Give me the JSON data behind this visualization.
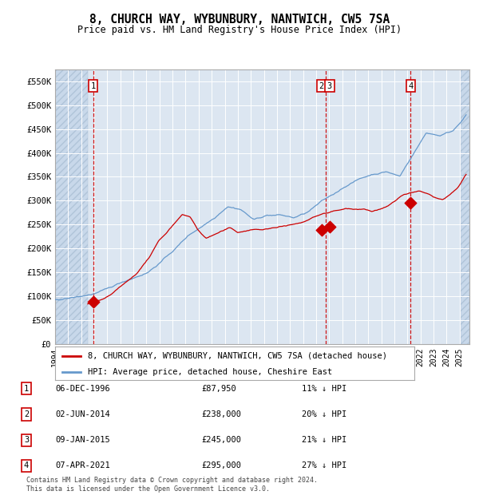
{
  "title": "8, CHURCH WAY, WYBUNBURY, NANTWICH, CW5 7SA",
  "subtitle": "Price paid vs. HM Land Registry's House Price Index (HPI)",
  "ylabel_ticks": [
    "£0",
    "£50K",
    "£100K",
    "£150K",
    "£200K",
    "£250K",
    "£300K",
    "£350K",
    "£400K",
    "£450K",
    "£500K",
    "£550K"
  ],
  "ytick_values": [
    0,
    50000,
    100000,
    150000,
    200000,
    250000,
    300000,
    350000,
    400000,
    450000,
    500000,
    550000
  ],
  "ylim": [
    0,
    575000
  ],
  "xlim_start": 1994.0,
  "xlim_end": 2025.75,
  "hpi_color": "#6699cc",
  "price_color": "#cc0000",
  "background_color": "#dce6f1",
  "grid_color": "#ffffff",
  "sale_points": [
    {
      "date_num": 1996.917,
      "price": 87950,
      "label": "1"
    },
    {
      "date_num": 2014.417,
      "price": 238000,
      "label": "2"
    },
    {
      "date_num": 2015.033,
      "price": 245000,
      "label": "3"
    },
    {
      "date_num": 2021.25,
      "price": 295000,
      "label": "4"
    }
  ],
  "annotations": [
    {
      "num": "1",
      "date": "06-DEC-1996",
      "price": "£87,950",
      "pct": "11% ↓ HPI"
    },
    {
      "num": "2",
      "date": "02-JUN-2014",
      "price": "£238,000",
      "pct": "20% ↓ HPI"
    },
    {
      "num": "3",
      "date": "09-JAN-2015",
      "price": "£245,000",
      "pct": "21% ↓ HPI"
    },
    {
      "num": "4",
      "date": "07-APR-2021",
      "price": "£295,000",
      "pct": "27% ↓ HPI"
    }
  ],
  "legend_property": "8, CHURCH WAY, WYBUNBURY, NANTWICH, CW5 7SA (detached house)",
  "legend_hpi": "HPI: Average price, detached house, Cheshire East",
  "footer": "Contains HM Land Registry data © Crown copyright and database right 2024.\nThis data is licensed under the Open Government Licence v3.0.",
  "xticks": [
    1994,
    1995,
    1996,
    1997,
    1998,
    1999,
    2000,
    2001,
    2002,
    2003,
    2004,
    2005,
    2006,
    2007,
    2008,
    2009,
    2010,
    2011,
    2012,
    2013,
    2014,
    2015,
    2016,
    2017,
    2018,
    2019,
    2020,
    2021,
    2022,
    2023,
    2024,
    2025
  ],
  "hatch_end": 1996.5,
  "hatch_start_right": 2025.08
}
